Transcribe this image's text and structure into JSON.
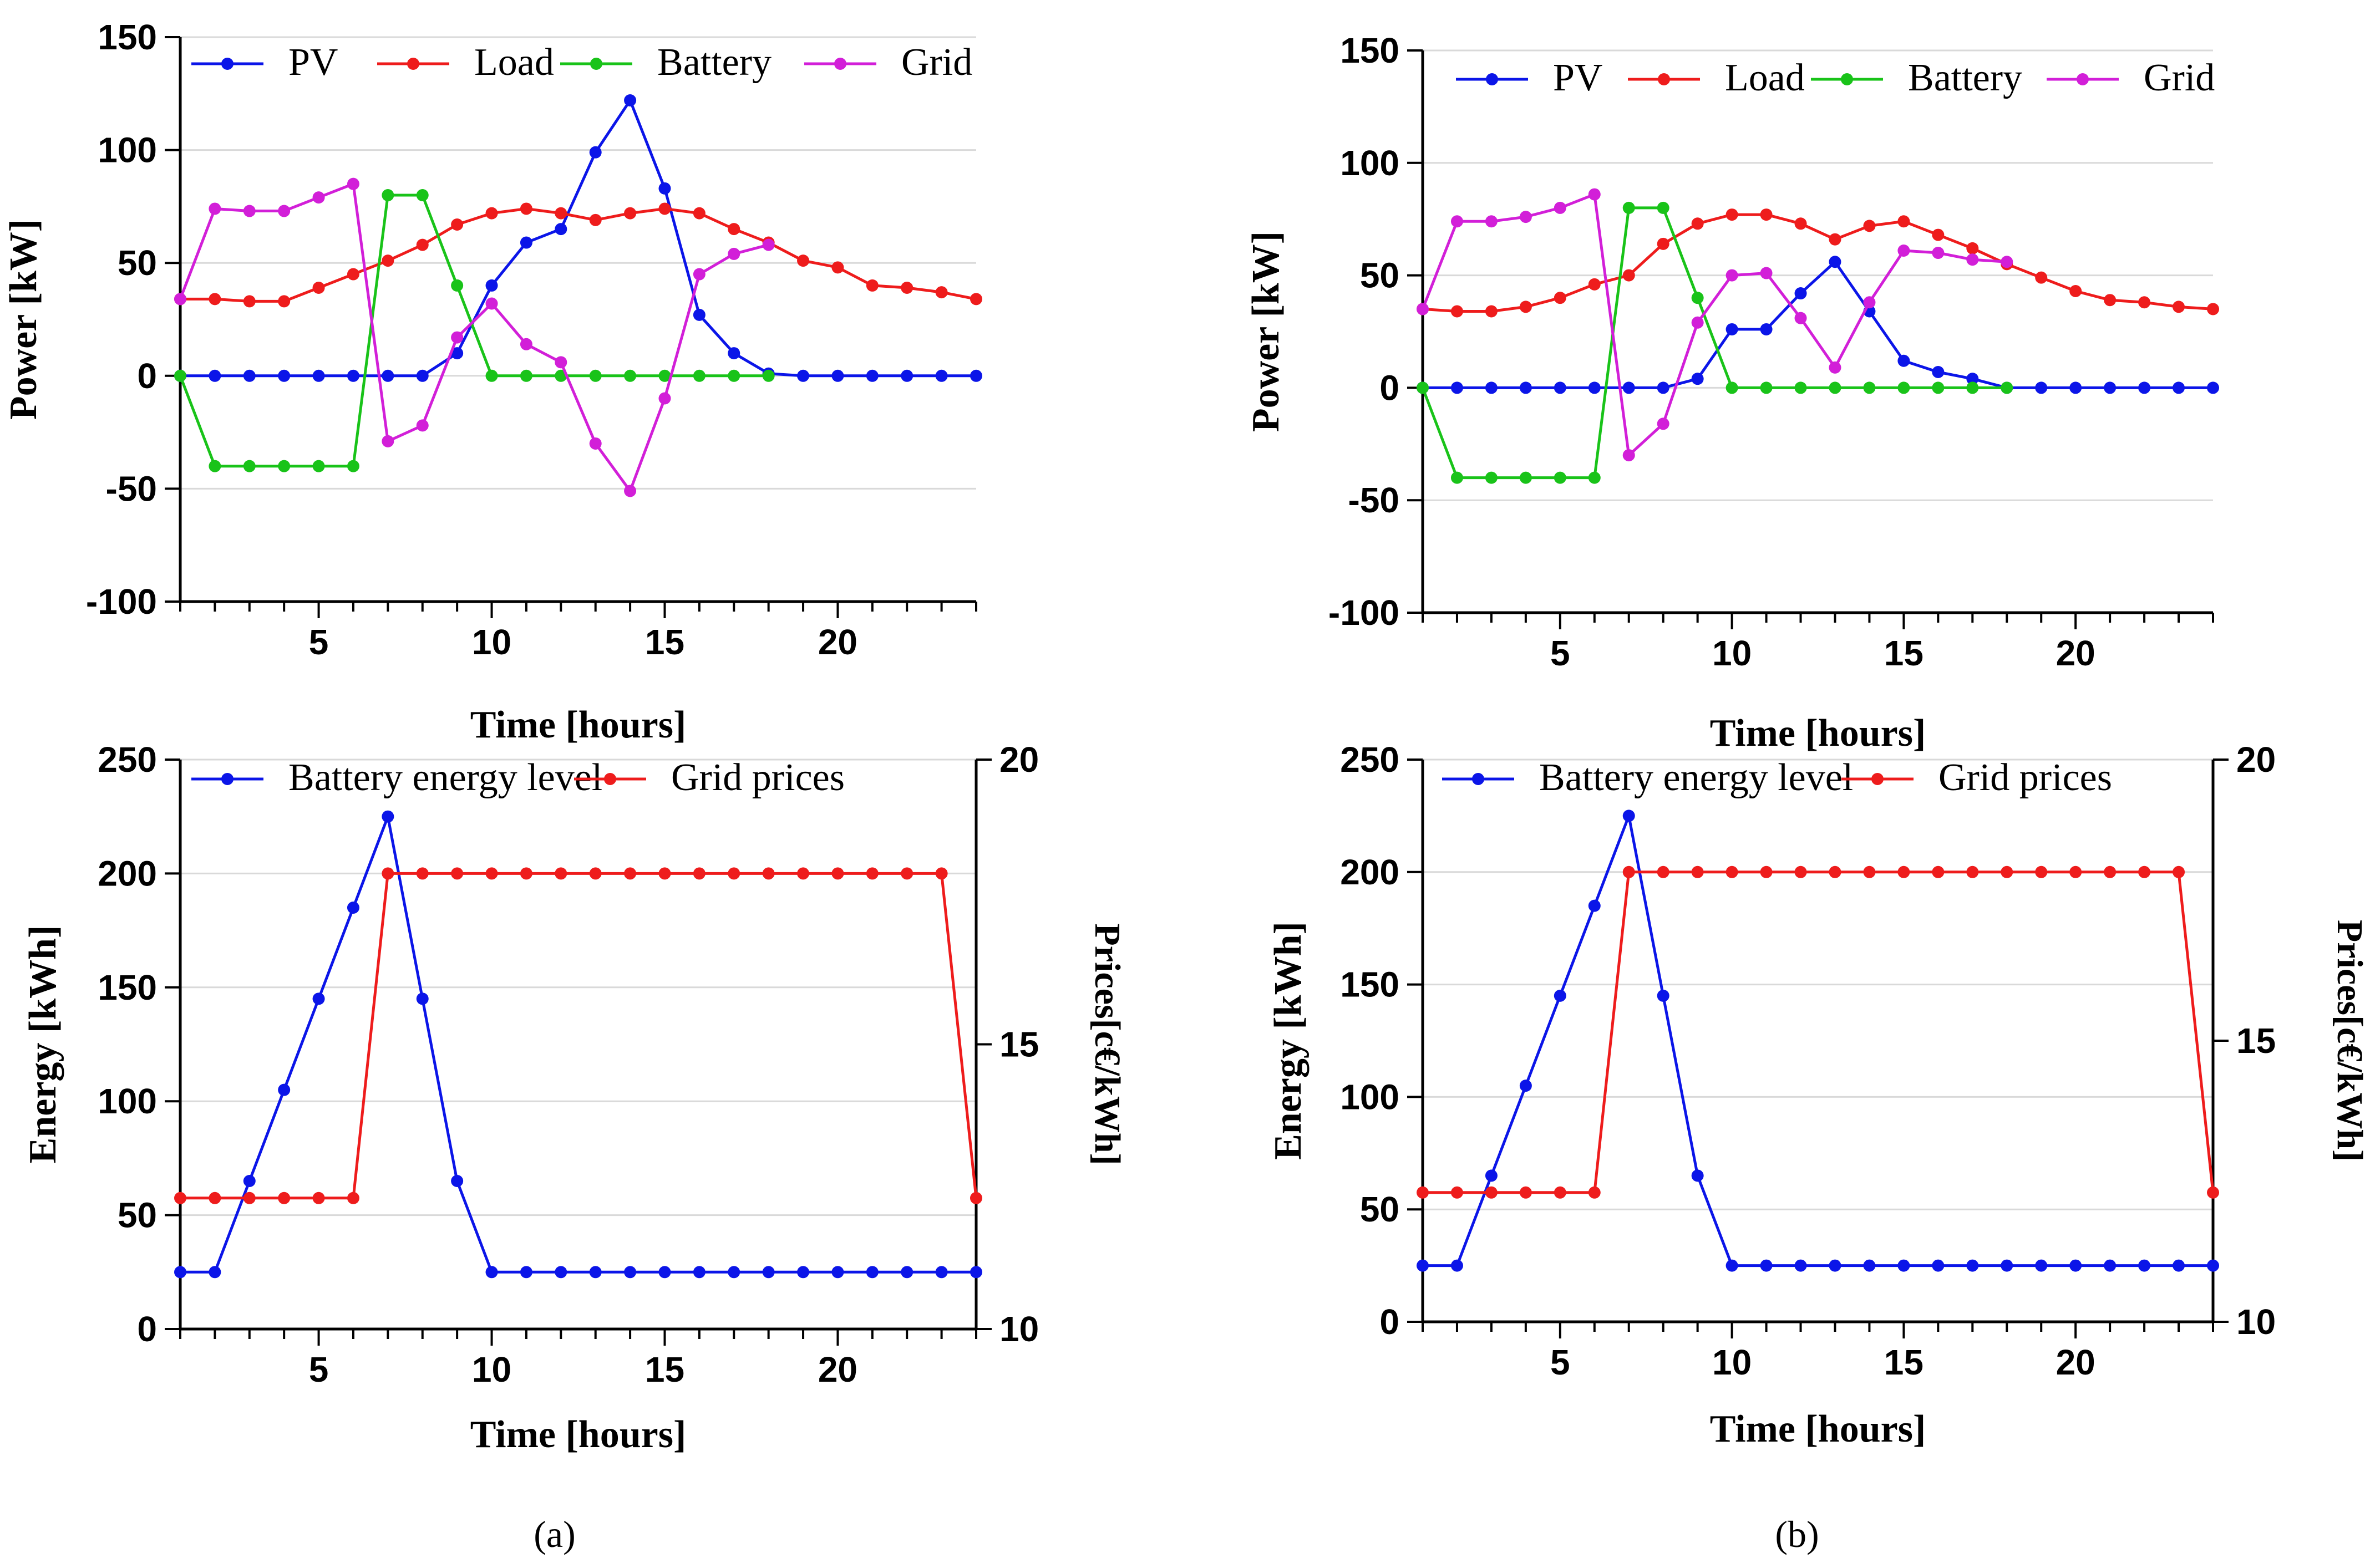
{
  "colors": {
    "pv": "#0b15e8",
    "load": "#ee1c1c",
    "battery": "#19c319",
    "grid": "#d21fd8",
    "energy": "#0b15e8",
    "prices": "#ee1c1c",
    "gridline": "#d9d9d9"
  },
  "captions": [
    "(a)",
    "(b)"
  ],
  "chart_data": [
    {
      "id": "a-power",
      "type": "line",
      "panel": "(a)",
      "xlabel": "Time [hours]",
      "ylabel": "Power [kW]",
      "xlim": [
        1,
        24
      ],
      "ylim": [
        -100,
        150
      ],
      "xticks": [
        5,
        10,
        15,
        20
      ],
      "yticks": [
        -100,
        -50,
        0,
        50,
        100,
        150
      ],
      "ytick_labels": [
        "-100",
        "-50",
        "0",
        "50",
        "100",
        "150"
      ],
      "grid": true,
      "legend": "top",
      "x": [
        1,
        2,
        3,
        4,
        5,
        6,
        7,
        8,
        9,
        10,
        11,
        12,
        13,
        14,
        15,
        16,
        17,
        18,
        19,
        20,
        21,
        22,
        23,
        24
      ],
      "series": [
        {
          "name": "PV",
          "key": "pv",
          "values": [
            0,
            0,
            0,
            0,
            0,
            0,
            0,
            0,
            10,
            40,
            59,
            65,
            99,
            122,
            83,
            27,
            10,
            1,
            0,
            0,
            0,
            0,
            0,
            0
          ]
        },
        {
          "name": "Load",
          "key": "load",
          "values": [
            34,
            34,
            33,
            33,
            39,
            45,
            51,
            58,
            67,
            72,
            74,
            72,
            69,
            72,
            74,
            72,
            65,
            59,
            51,
            48,
            40,
            39,
            37,
            34
          ]
        },
        {
          "name": "Battery",
          "key": "battery",
          "values": [
            0,
            -40,
            -40,
            -40,
            -40,
            -40,
            80,
            80,
            40,
            0,
            0,
            0,
            0,
            0,
            0,
            0,
            0,
            0,
            null,
            null,
            null,
            null,
            null,
            null
          ]
        },
        {
          "name": "Grid",
          "key": "grid",
          "values": [
            34,
            74,
            73,
            73,
            79,
            85,
            -29,
            -22,
            17,
            32,
            14,
            6,
            -30,
            -51,
            -10,
            45,
            54,
            58,
            null,
            null,
            null,
            null,
            null,
            null
          ]
        }
      ]
    },
    {
      "id": "b-power",
      "type": "line",
      "panel": "(b)",
      "xlabel": "Time [hours]",
      "ylabel": "Power [kW]",
      "xlim": [
        1,
        24
      ],
      "ylim": [
        -100,
        150
      ],
      "xticks": [
        5,
        10,
        15,
        20
      ],
      "yticks": [
        -100,
        -50,
        0,
        50,
        100,
        150
      ],
      "ytick_labels": [
        "-100",
        "-50",
        "0",
        "50",
        "100",
        "150"
      ],
      "grid": true,
      "legend": "top",
      "x": [
        1,
        2,
        3,
        4,
        5,
        6,
        7,
        8,
        9,
        10,
        11,
        12,
        13,
        14,
        15,
        16,
        17,
        18,
        19,
        20,
        21,
        22,
        23,
        24
      ],
      "series": [
        {
          "name": "PV",
          "key": "pv",
          "values": [
            0,
            0,
            0,
            0,
            0,
            0,
            0,
            0,
            4,
            26,
            26,
            42,
            56,
            34,
            12,
            7,
            4,
            0,
            0,
            0,
            0,
            0,
            0,
            0
          ]
        },
        {
          "name": "Load",
          "key": "load",
          "values": [
            35,
            34,
            34,
            36,
            40,
            46,
            50,
            64,
            73,
            77,
            77,
            73,
            66,
            72,
            74,
            68,
            62,
            55,
            49,
            43,
            39,
            38,
            36,
            35
          ]
        },
        {
          "name": "Battery",
          "key": "battery",
          "values": [
            0,
            -40,
            -40,
            -40,
            -40,
            -40,
            80,
            80,
            40,
            0,
            0,
            0,
            0,
            0,
            0,
            0,
            0,
            0,
            null,
            null,
            null,
            null,
            null,
            null
          ]
        },
        {
          "name": "Grid",
          "key": "grid",
          "values": [
            35,
            74,
            74,
            76,
            80,
            86,
            -30,
            -16,
            29,
            50,
            51,
            31,
            9,
            38,
            61,
            60,
            57,
            56,
            null,
            null,
            null,
            null,
            null,
            null
          ]
        }
      ]
    },
    {
      "id": "a-energy",
      "type": "line",
      "panel": "(a)",
      "xlabel": "Time [hours]",
      "ylabel": "Energy [kWh]",
      "y2label": "Prices[c€/kWh]",
      "xlim": [
        1,
        24
      ],
      "ylim": [
        0,
        250
      ],
      "y2lim": [
        10,
        20
      ],
      "xticks": [
        5,
        10,
        15,
        20
      ],
      "yticks": [
        0,
        50,
        100,
        150,
        200,
        250
      ],
      "ytick_labels": [
        "0",
        "50",
        "100",
        "150",
        "200",
        "250"
      ],
      "y2ticks": [
        10,
        15,
        20
      ],
      "y2tick_labels": [
        "10",
        "15",
        "20"
      ],
      "grid": true,
      "legend": "top",
      "x": [
        1,
        2,
        3,
        4,
        5,
        6,
        7,
        8,
        9,
        10,
        11,
        12,
        13,
        14,
        15,
        16,
        17,
        18,
        19,
        20,
        21,
        22,
        23,
        24
      ],
      "series": [
        {
          "name": "Battery energy level",
          "key": "energy",
          "axis": "left",
          "values": [
            25,
            25,
            65,
            105,
            145,
            185,
            225,
            145,
            65,
            25,
            25,
            25,
            25,
            25,
            25,
            25,
            25,
            25,
            25,
            25,
            25,
            25,
            25,
            25
          ]
        },
        {
          "name": "Grid prices",
          "key": "prices",
          "axis": "right",
          "values": [
            12.3,
            12.3,
            12.3,
            12.3,
            12.3,
            12.3,
            18,
            18,
            18,
            18,
            18,
            18,
            18,
            18,
            18,
            18,
            18,
            18,
            18,
            18,
            18,
            18,
            18,
            12.3
          ]
        }
      ]
    },
    {
      "id": "b-energy",
      "type": "line",
      "panel": "(b)",
      "xlabel": "Time [hours]",
      "ylabel": "Energy [kWh]",
      "y2label": "Prices[c€/kWh]",
      "xlim": [
        1,
        24
      ],
      "ylim": [
        0,
        250
      ],
      "y2lim": [
        10,
        20
      ],
      "xticks": [
        5,
        10,
        15,
        20
      ],
      "yticks": [
        0,
        50,
        100,
        150,
        200,
        250
      ],
      "ytick_labels": [
        "0",
        "50",
        "100",
        "150",
        "200",
        "250"
      ],
      "y2ticks": [
        10,
        15,
        20
      ],
      "y2tick_labels": [
        "10",
        "15",
        "20"
      ],
      "grid": true,
      "legend": "top",
      "x": [
        1,
        2,
        3,
        4,
        5,
        6,
        7,
        8,
        9,
        10,
        11,
        12,
        13,
        14,
        15,
        16,
        17,
        18,
        19,
        20,
        21,
        22,
        23,
        24
      ],
      "series": [
        {
          "name": "Battery energy level",
          "key": "energy",
          "axis": "left",
          "values": [
            25,
            25,
            65,
            105,
            145,
            185,
            225,
            145,
            65,
            25,
            25,
            25,
            25,
            25,
            25,
            25,
            25,
            25,
            25,
            25,
            25,
            25,
            25,
            25
          ]
        },
        {
          "name": "Grid prices",
          "key": "prices",
          "axis": "right",
          "values": [
            12.3,
            12.3,
            12.3,
            12.3,
            12.3,
            12.3,
            18,
            18,
            18,
            18,
            18,
            18,
            18,
            18,
            18,
            18,
            18,
            18,
            18,
            18,
            18,
            18,
            18,
            12.3
          ]
        }
      ]
    }
  ]
}
